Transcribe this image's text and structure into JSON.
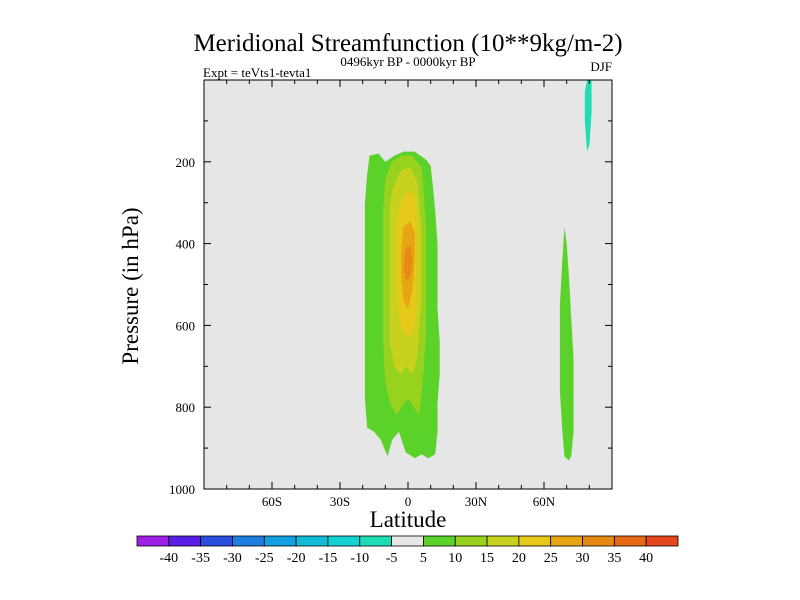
{
  "chart_data": {
    "type": "contour",
    "title": "Meridional Streamfunction (10**9kg/m-2)",
    "left_label": "Expt = teVts1-tevta1",
    "center_label": "0496kyr BP - 0000kyr BP",
    "right_label": "DJF",
    "xlabel": "Latitude",
    "ylabel": "Pressure (in hPa)",
    "xlim": [
      -90,
      90
    ],
    "ylim": [
      1000,
      0
    ],
    "x_ticks": [
      {
        "value": -60,
        "label": "60S"
      },
      {
        "value": -30,
        "label": "30S"
      },
      {
        "value": 0,
        "label": "0"
      },
      {
        "value": 30,
        "label": "30N"
      },
      {
        "value": 60,
        "label": "60N"
      }
    ],
    "y_ticks": [
      {
        "value": 200,
        "label": "200"
      },
      {
        "value": 400,
        "label": "400"
      },
      {
        "value": 600,
        "label": "600"
      },
      {
        "value": 800,
        "label": "800"
      },
      {
        "value": 1000,
        "label": "1000"
      }
    ],
    "background_color": "#e6e6e6",
    "colorbar": {
      "labels": [
        "-40",
        "-35",
        "-30",
        "-25",
        "-20",
        "-15",
        "-10",
        "-5",
        "5",
        "10",
        "15",
        "20",
        "25",
        "30",
        "35",
        "40"
      ],
      "colors": [
        "#9f1fe6",
        "#5a1fe6",
        "#2a4fe0",
        "#1e7ee0",
        "#14a0e0",
        "#12bcd6",
        "#12d2d2",
        "#20dcb4",
        "#e6e6e6",
        "#5ad22a",
        "#96d21e",
        "#c8d21e",
        "#e6c818",
        "#e6a614",
        "#e68a14",
        "#e66a14",
        "#e6461e"
      ]
    },
    "regions": [
      {
        "name": "positive-5-10-outer",
        "level": 5,
        "color": "#5ad22a",
        "points": [
          [
            -17,
            185
          ],
          [
            -13,
            180
          ],
          [
            -10,
            200
          ],
          [
            -6,
            185
          ],
          [
            -2,
            175
          ],
          [
            3,
            175
          ],
          [
            8,
            195
          ],
          [
            10,
            210
          ],
          [
            11,
            260
          ],
          [
            12,
            320
          ],
          [
            13,
            400
          ],
          [
            13,
            480
          ],
          [
            13,
            560
          ],
          [
            14,
            640
          ],
          [
            14,
            720
          ],
          [
            13,
            790
          ],
          [
            13,
            860
          ],
          [
            12,
            915
          ],
          [
            9,
            925
          ],
          [
            6,
            915
          ],
          [
            3,
            925
          ],
          [
            -1,
            910
          ],
          [
            -4,
            860
          ],
          [
            -7,
            880
          ],
          [
            -9,
            920
          ],
          [
            -12,
            880
          ],
          [
            -15,
            860
          ],
          [
            -18,
            850
          ],
          [
            -19,
            780
          ],
          [
            -19,
            700
          ],
          [
            -19,
            600
          ],
          [
            -19,
            500
          ],
          [
            -19,
            400
          ],
          [
            -19,
            300
          ],
          [
            -18,
            230
          ]
        ]
      },
      {
        "name": "positive-10-15",
        "level": 10,
        "color": "#96d21e",
        "points": [
          [
            -10,
            240
          ],
          [
            -7,
            200
          ],
          [
            -3,
            185
          ],
          [
            2,
            185
          ],
          [
            6,
            215
          ],
          [
            7,
            280
          ],
          [
            8,
            360
          ],
          [
            8,
            450
          ],
          [
            8,
            540
          ],
          [
            8,
            620
          ],
          [
            7,
            700
          ],
          [
            6,
            770
          ],
          [
            5,
            820
          ],
          [
            3,
            805
          ],
          [
            0,
            780
          ],
          [
            -3,
            800
          ],
          [
            -5,
            820
          ],
          [
            -8,
            790
          ],
          [
            -10,
            740
          ],
          [
            -11,
            640
          ],
          [
            -11,
            530
          ],
          [
            -11,
            420
          ],
          [
            -11,
            320
          ]
        ]
      },
      {
        "name": "positive-15-20",
        "level": 15,
        "color": "#c8d21e",
        "points": [
          [
            -7,
            270
          ],
          [
            -3,
            220
          ],
          [
            1,
            215
          ],
          [
            4,
            245
          ],
          [
            5,
            300
          ],
          [
            6,
            380
          ],
          [
            6,
            460
          ],
          [
            6,
            540
          ],
          [
            5,
            610
          ],
          [
            4,
            680
          ],
          [
            2,
            720
          ],
          [
            -1,
            700
          ],
          [
            -3,
            720
          ],
          [
            -6,
            700
          ],
          [
            -8,
            640
          ],
          [
            -8,
            560
          ],
          [
            -8,
            470
          ],
          [
            -8,
            380
          ],
          [
            -8,
            310
          ]
        ]
      },
      {
        "name": "positive-20-25",
        "level": 20,
        "color": "#e6c818",
        "points": [
          [
            -4,
            310
          ],
          [
            0,
            270
          ],
          [
            3,
            285
          ],
          [
            4,
            340
          ],
          [
            4,
            410
          ],
          [
            4,
            480
          ],
          [
            4,
            550
          ],
          [
            3,
            600
          ],
          [
            1,
            630
          ],
          [
            -2,
            620
          ],
          [
            -4,
            580
          ],
          [
            -5,
            500
          ],
          [
            -5,
            420
          ],
          [
            -5,
            360
          ]
        ]
      },
      {
        "name": "positive-25-30",
        "level": 25,
        "color": "#e6a614",
        "points": [
          [
            -2,
            360
          ],
          [
            1,
            345
          ],
          [
            3,
            375
          ],
          [
            3,
            440
          ],
          [
            2,
            510
          ],
          [
            0,
            560
          ],
          [
            -2,
            540
          ],
          [
            -3,
            480
          ],
          [
            -3,
            420
          ]
        ]
      },
      {
        "name": "positive-30-35",
        "level": 30,
        "color": "#e68a14",
        "points": [
          [
            -1,
            410
          ],
          [
            1,
            405
          ],
          [
            2,
            440
          ],
          [
            1,
            480
          ],
          [
            -1,
            490
          ],
          [
            -2,
            460
          ]
        ]
      },
      {
        "name": "positive-60N-column",
        "level": 5,
        "color": "#5ad22a",
        "points": [
          [
            69,
            360
          ],
          [
            70,
            400
          ],
          [
            71,
            480
          ],
          [
            72,
            580
          ],
          [
            73,
            680
          ],
          [
            73,
            770
          ],
          [
            73,
            860
          ],
          [
            72,
            920
          ],
          [
            71,
            930
          ],
          [
            69,
            920
          ],
          [
            68,
            850
          ],
          [
            67,
            760
          ],
          [
            67,
            650
          ],
          [
            67,
            550
          ],
          [
            68,
            450
          ]
        ]
      },
      {
        "name": "negative-polar-sliver",
        "level": -5,
        "color": "#20dcb4",
        "points": [
          [
            79,
            0
          ],
          [
            81,
            0
          ],
          [
            81,
            80
          ],
          [
            80,
            160
          ],
          [
            79,
            175
          ],
          [
            78,
            100
          ],
          [
            78,
            30
          ]
        ]
      }
    ]
  }
}
